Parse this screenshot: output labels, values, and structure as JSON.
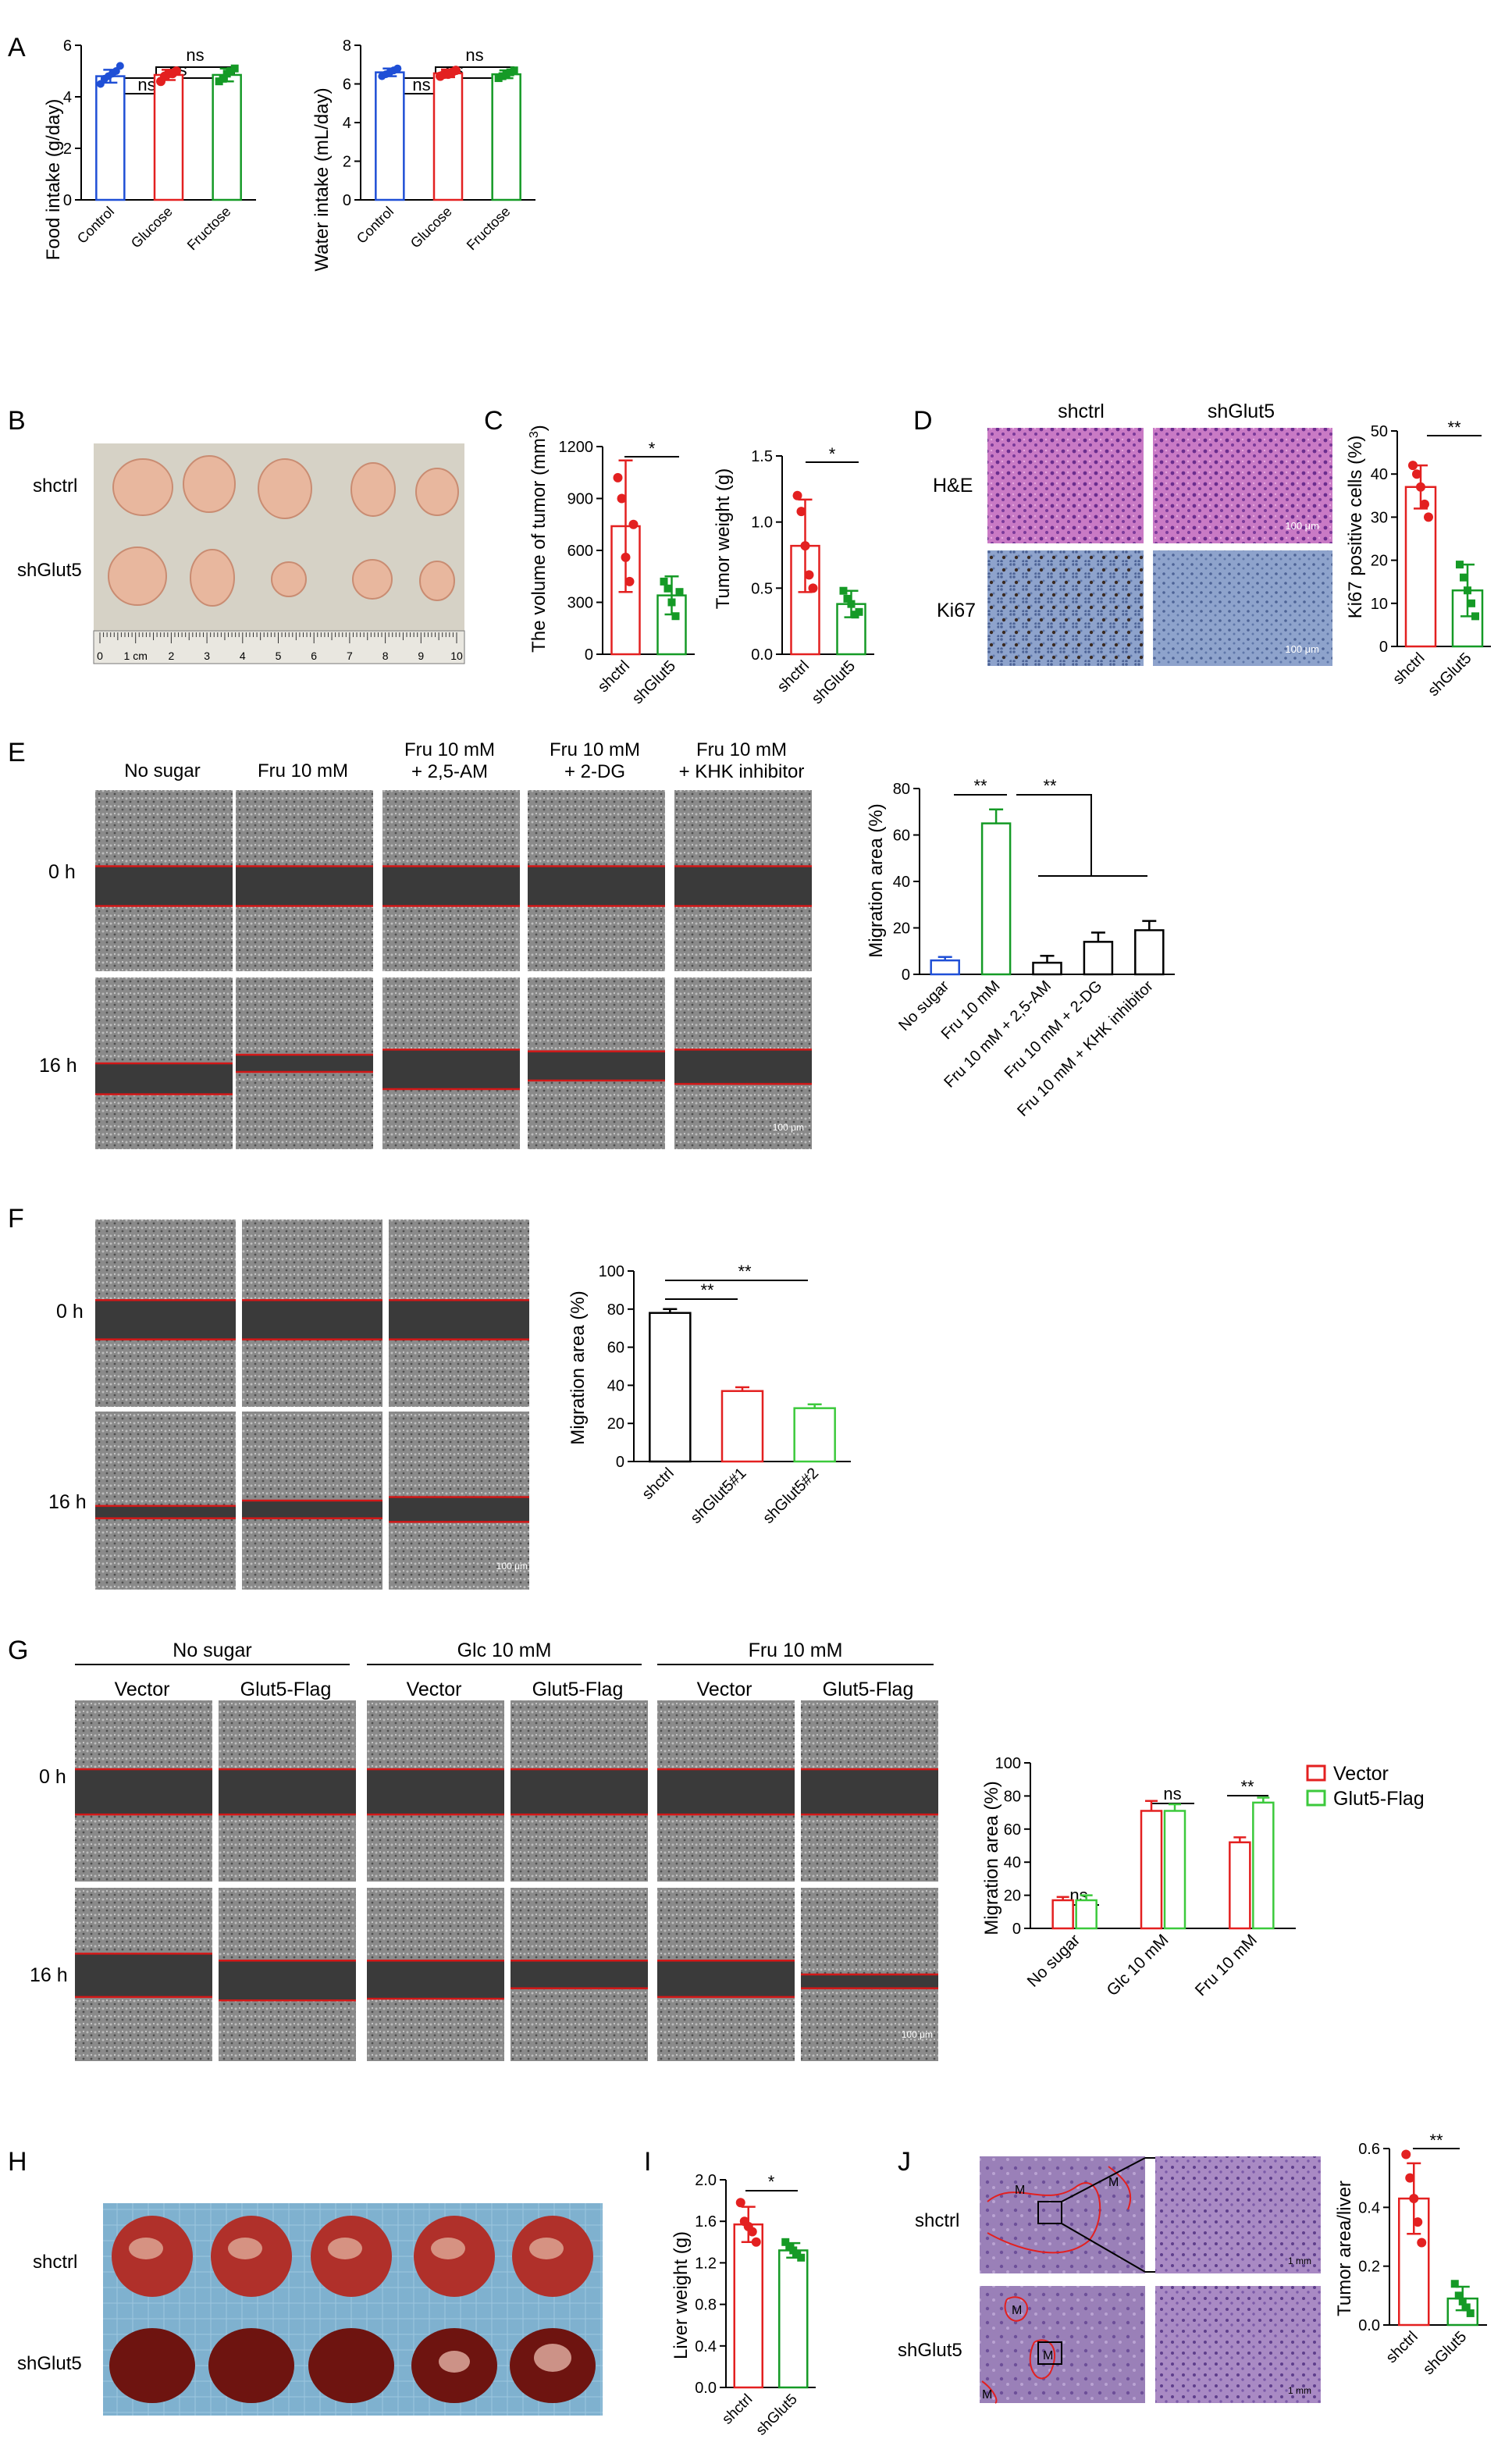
{
  "figure": {
    "panel_letters": [
      "A",
      "B",
      "C",
      "D",
      "E",
      "F",
      "G",
      "H",
      "I",
      "J"
    ]
  },
  "colors": {
    "blue": "#1f4fd6",
    "red": "#e32020",
    "green": "#159a26",
    "green_light": "#3cc93c",
    "black": "#000000",
    "scratch_line": "#d21818",
    "tissue_he": "#b36bb6",
    "tissue_ki67": "#7d93bf",
    "liver_red": "#8a1c16",
    "background_blue": "#8fbcd6"
  },
  "panelA": {
    "food": {
      "ylabel": "Food intake (g/day)",
      "sig": [
        "ns",
        "ns",
        "ns"
      ]
    },
    "water": {
      "ylabel": "Water intake (mL/day)",
      "sig": [
        "ns",
        "ns",
        "ns"
      ]
    }
  },
  "panelB": {
    "row_labels": [
      "shctrl",
      "shGlut5"
    ],
    "ruler_labels": [
      "0",
      "1 cm",
      "2",
      "3",
      "4",
      "5",
      "6",
      "7",
      "8",
      "9",
      "10"
    ]
  },
  "panelC": {
    "volume": {
      "ylabel": "The volume of tumor (mm",
      "ylabel_sup": "3",
      "ylabel_end": ")",
      "sig": "*"
    },
    "weight": {
      "ylabel": "Tumor weight (g)",
      "sig": "*"
    }
  },
  "panelD": {
    "col_labels": [
      "shctrl",
      "shGlut5"
    ],
    "row_labels": [
      "H&E",
      "Ki67"
    ],
    "scale": "100 μm",
    "ylabel": "Ki67 positive cells (%)",
    "sig": "**"
  },
  "panelE": {
    "col_labels": [
      [
        "No sugar"
      ],
      [
        "Fru 10 mM"
      ],
      [
        "Fru 10 mM",
        "+ 2,5-AM"
      ],
      [
        "Fru 10 mM",
        "+ 2-DG"
      ],
      [
        "Fru 10 mM",
        "+ KHK inhibitor"
      ]
    ],
    "row_labels": [
      "0 h",
      "16 h"
    ],
    "scale": "100 μm",
    "ylabel": "Migration area (%)",
    "sig": [
      "**",
      "**"
    ]
  },
  "panelF": {
    "col_labels": [
      "shctrl",
      "shGlut5#1",
      "shGlut5#2"
    ],
    "row_labels": [
      "0 h",
      "16 h"
    ],
    "scale": "100 μm",
    "ylabel": "Migration area (%)",
    "sig": [
      "**",
      "**"
    ]
  },
  "panelG": {
    "group_labels": [
      "No sugar",
      "Glc 10 mM",
      "Fru 10 mM"
    ],
    "col_labels": [
      "Vector",
      "Glut5-Flag",
      "Vector",
      "Glut5-Flag",
      "Vector",
      "Glut5-Flag"
    ],
    "row_labels": [
      "0 h",
      "16 h"
    ],
    "scale": "100 μm",
    "ylabel": "Migration area (%)",
    "legend": [
      "Vector",
      "Glut5-Flag"
    ],
    "sig": [
      "ns",
      "ns",
      "**"
    ]
  },
  "panelH": {
    "row_labels": [
      "shctrl",
      "shGlut5"
    ]
  },
  "panelI": {
    "ylabel": "Liver weight  (g)",
    "sig": "*"
  },
  "panelJ": {
    "row_labels": [
      "shctrl",
      "shGlut5"
    ],
    "markers": [
      "M",
      "M",
      "M",
      "M",
      "M"
    ],
    "scale": "1 mm",
    "ylabel": "Tumor area/liver",
    "sig": "**"
  },
  "chart_data": [
    {
      "id": "A-food",
      "type": "bar",
      "categories": [
        "Control",
        "Glucose",
        "Fructose"
      ],
      "values": [
        4.8,
        4.85,
        4.85
      ],
      "errors": [
        0.25,
        0.2,
        0.25
      ],
      "points": [
        [
          4.5,
          4.7,
          4.8,
          4.9,
          5.0,
          5.2
        ],
        [
          4.6,
          4.8,
          4.9,
          4.9,
          5.0
        ],
        [
          4.6,
          4.7,
          4.9,
          5.0,
          5.1
        ]
      ],
      "colors": [
        "#1f4fd6",
        "#e32020",
        "#159a26"
      ],
      "ylim": [
        0,
        6
      ],
      "yticks": [
        "0",
        "2",
        "4",
        "6"
      ],
      "ylabel": "Food intake (g/day)"
    },
    {
      "id": "A-water",
      "type": "bar",
      "categories": [
        "Control",
        "Glucose",
        "Fructose"
      ],
      "values": [
        6.6,
        6.55,
        6.5
      ],
      "errors": [
        0.2,
        0.2,
        0.2
      ],
      "points": [
        [
          6.4,
          6.5,
          6.6,
          6.7,
          6.8
        ],
        [
          6.4,
          6.5,
          6.5,
          6.6,
          6.7
        ],
        [
          6.3,
          6.4,
          6.5,
          6.6,
          6.7
        ]
      ],
      "colors": [
        "#1f4fd6",
        "#e32020",
        "#159a26"
      ],
      "ylim": [
        0,
        8
      ],
      "yticks": [
        "0",
        "2",
        "4",
        "6",
        "8"
      ],
      "ylabel": "Water intake (mL/day)"
    },
    {
      "id": "C-volume",
      "type": "bar",
      "categories": [
        "shctrl",
        "shGlut5"
      ],
      "values": [
        740,
        340
      ],
      "errors": [
        380,
        110
      ],
      "points": [
        [
          1020,
          900,
          560,
          420,
          750
        ],
        [
          420,
          380,
          300,
          220,
          360
        ]
      ],
      "colors": [
        "#e32020",
        "#159a26"
      ],
      "ylim": [
        0,
        1200
      ],
      "yticks": [
        "0",
        "300",
        "600",
        "900",
        "1200"
      ],
      "ylabel": "The volume of tumor (mm3)"
    },
    {
      "id": "C-weight",
      "type": "bar",
      "categories": [
        "shctrl",
        "shGlut5"
      ],
      "values": [
        0.82,
        0.38
      ],
      "errors": [
        0.35,
        0.1
      ],
      "points": [
        [
          1.2,
          1.08,
          0.82,
          0.6,
          0.5
        ],
        [
          0.48,
          0.42,
          0.38,
          0.3,
          0.32
        ]
      ],
      "colors": [
        "#e32020",
        "#159a26"
      ],
      "ylim": [
        0,
        1.5
      ],
      "yticks": [
        "0.0",
        "0.5",
        "1.0",
        "1.5"
      ],
      "ylabel": "Tumor weight (g)"
    },
    {
      "id": "D-ki67",
      "type": "bar",
      "categories": [
        "shctrl",
        "shGlut5"
      ],
      "values": [
        37,
        13
      ],
      "errors": [
        5,
        6
      ],
      "points": [
        [
          42,
          40,
          37,
          33,
          30
        ],
        [
          19,
          16,
          13,
          10,
          7
        ]
      ],
      "colors": [
        "#e32020",
        "#159a26"
      ],
      "ylim": [
        0,
        50
      ],
      "yticks": [
        "0",
        "10",
        "20",
        "30",
        "40",
        "50"
      ],
      "ylabel": "Ki67 positive cells (%)"
    },
    {
      "id": "E-migration",
      "type": "bar",
      "categories": [
        "No sugar",
        "Fru 10 mM",
        "Fru 10 mM + 2,5-AM",
        "Fru 10 mM + 2-DG",
        "Fru 10 mM + KHK inhibitor"
      ],
      "values": [
        6,
        65,
        5,
        14,
        19
      ],
      "errors": [
        1.5,
        6,
        3,
        4,
        4
      ],
      "colors": [
        "#1f4fd6",
        "#159a26",
        "#000000",
        "#000000",
        "#000000"
      ],
      "ylim": [
        0,
        80
      ],
      "yticks": [
        "0",
        "20",
        "40",
        "60",
        "80"
      ],
      "ylabel": "Migration area (%)"
    },
    {
      "id": "F-migration",
      "type": "bar",
      "categories": [
        "shctrl",
        "shGlut5#1",
        "shGlut5#2"
      ],
      "values": [
        78,
        37,
        28
      ],
      "errors": [
        2,
        2,
        2
      ],
      "colors": [
        "#000000",
        "#e32020",
        "#3cc93c"
      ],
      "ylim": [
        0,
        100
      ],
      "yticks": [
        "0",
        "20",
        "40",
        "60",
        "80",
        "100"
      ],
      "ylabel": "Migration area (%)"
    },
    {
      "id": "G-migration",
      "type": "bar",
      "categories": [
        "No sugar",
        "Glc 10 mM",
        "Fru 10 mM"
      ],
      "series": [
        {
          "name": "Vector",
          "values": [
            17,
            71,
            52
          ],
          "errors": [
            2,
            6,
            3
          ]
        },
        {
          "name": "Glut5-Flag",
          "values": [
            17,
            71,
            76
          ],
          "errors": [
            3,
            4,
            3
          ]
        }
      ],
      "colors": [
        "#e32020",
        "#3cc93c"
      ],
      "ylim": [
        0,
        100
      ],
      "yticks": [
        "0",
        "20",
        "40",
        "60",
        "80",
        "100"
      ],
      "ylabel": "Migration area (%)"
    },
    {
      "id": "I-liver",
      "type": "bar",
      "categories": [
        "shctrl",
        "shGlut5"
      ],
      "values": [
        1.57,
        1.32
      ],
      "errors": [
        0.17,
        0.07
      ],
      "points": [
        [
          1.78,
          1.6,
          1.55,
          1.5,
          1.4
        ],
        [
          1.4,
          1.35,
          1.32,
          1.28,
          1.25
        ]
      ],
      "colors": [
        "#e32020",
        "#159a26"
      ],
      "ylim": [
        0,
        2.0
      ],
      "yticks": [
        "0.0",
        "0.4",
        "0.8",
        "1.2",
        "1.6",
        "2.0"
      ],
      "ylabel": "Liver weight  (g)"
    },
    {
      "id": "J-area",
      "type": "bar",
      "categories": [
        "shctrl",
        "shGlut5"
      ],
      "values": [
        0.43,
        0.09
      ],
      "errors": [
        0.12,
        0.04
      ],
      "points": [
        [
          0.58,
          0.5,
          0.43,
          0.35,
          0.28
        ],
        [
          0.14,
          0.1,
          0.08,
          0.06,
          0.04
        ]
      ],
      "colors": [
        "#e32020",
        "#159a26"
      ],
      "ylim": [
        0,
        0.6
      ],
      "yticks": [
        "0.0",
        "0.2",
        "0.4",
        "0.6"
      ],
      "ylabel": "Tumor area/liver"
    }
  ]
}
